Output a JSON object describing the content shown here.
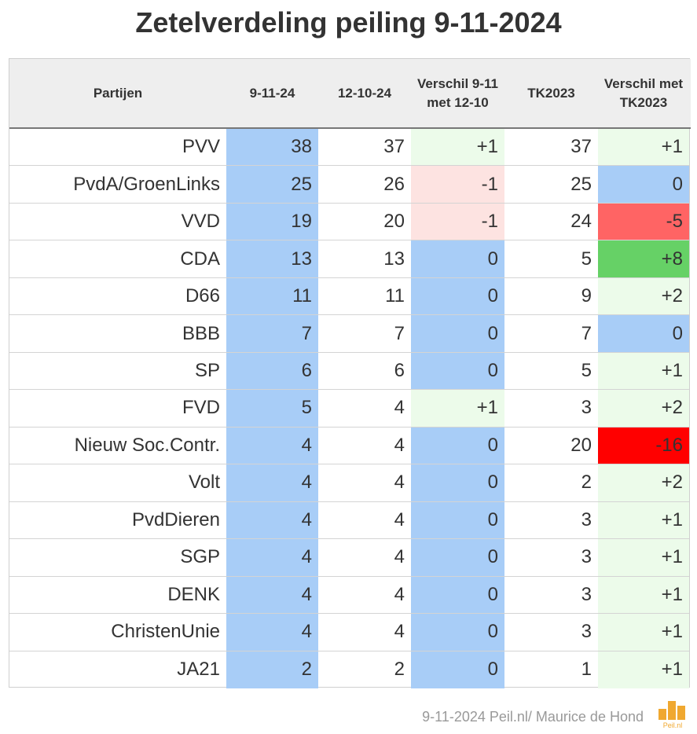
{
  "chart_data": {
    "type": "table",
    "title": "Zetelverdeling peiling 9-11-2024",
    "columns": [
      "Partijen",
      "9-11-24",
      "12-10-24",
      "Verschil 9-11 met 12-10",
      "TK2023",
      "Verschil met TK2023"
    ],
    "rows": [
      {
        "party": "PVV",
        "p1": "38",
        "p2": "37",
        "d1": "+1",
        "tk": "37",
        "d2": "+1"
      },
      {
        "party": "PvdA/GroenLinks",
        "p1": "25",
        "p2": "26",
        "d1": "-1",
        "tk": "25",
        "d2": "0"
      },
      {
        "party": "VVD",
        "p1": "19",
        "p2": "20",
        "d1": "-1",
        "tk": "24",
        "d2": "-5"
      },
      {
        "party": "CDA",
        "p1": "13",
        "p2": "13",
        "d1": "0",
        "tk": "5",
        "d2": "+8"
      },
      {
        "party": "D66",
        "p1": "11",
        "p2": "11",
        "d1": "0",
        "tk": "9",
        "d2": "+2"
      },
      {
        "party": "BBB",
        "p1": "7",
        "p2": "7",
        "d1": "0",
        "tk": "7",
        "d2": "0"
      },
      {
        "party": "SP",
        "p1": "6",
        "p2": "6",
        "d1": "0",
        "tk": "5",
        "d2": "+1"
      },
      {
        "party": "FVD",
        "p1": "5",
        "p2": "4",
        "d1": "+1",
        "tk": "3",
        "d2": "+2"
      },
      {
        "party": "Nieuw Soc.Contr.",
        "p1": "4",
        "p2": "4",
        "d1": "0",
        "tk": "20",
        "d2": "-16"
      },
      {
        "party": "Volt",
        "p1": "4",
        "p2": "4",
        "d1": "0",
        "tk": "2",
        "d2": "+2"
      },
      {
        "party": "PvdDieren",
        "p1": "4",
        "p2": "4",
        "d1": "0",
        "tk": "3",
        "d2": "+1"
      },
      {
        "party": "SGP",
        "p1": "4",
        "p2": "4",
        "d1": "0",
        "tk": "3",
        "d2": "+1"
      },
      {
        "party": "DENK",
        "p1": "4",
        "p2": "4",
        "d1": "0",
        "tk": "3",
        "d2": "+1"
      },
      {
        "party": "ChristenUnie",
        "p1": "4",
        "p2": "4",
        "d1": "0",
        "tk": "3",
        "d2": "+1"
      },
      {
        "party": "JA21",
        "p1": "2",
        "p2": "2",
        "d1": "0",
        "tk": "1",
        "d2": "+1"
      }
    ]
  },
  "colors": {
    "current_poll": "#a8cdf7",
    "zero_change": "#a8cdf7",
    "small_gain": "#ecfbea",
    "small_loss": "#fde3e1",
    "large_gain": "#66d166",
    "large_loss": "#ff6464",
    "very_large_loss": "#ff0000",
    "header_bg": "#eeeeee",
    "logo": "#f0a830"
  },
  "footer": {
    "credit": "9-11-2024 Peil.nl/ Maurice de Hond",
    "logo_text": "Peil.nl"
  }
}
